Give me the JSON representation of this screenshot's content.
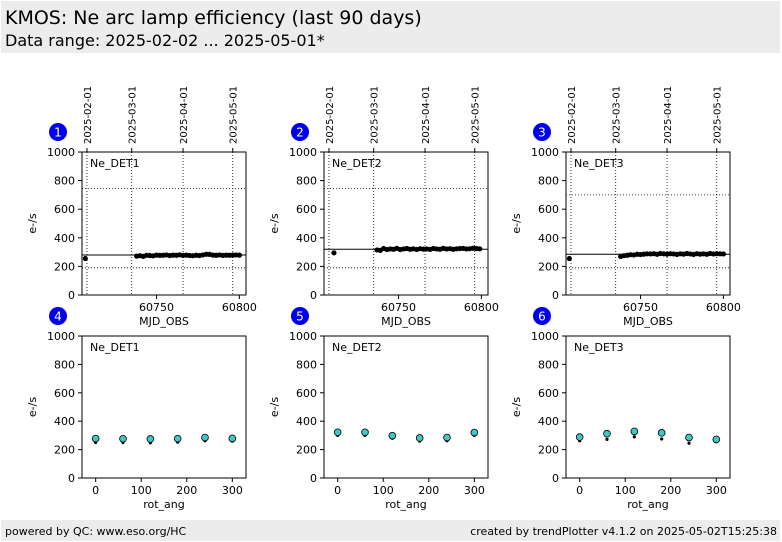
{
  "header": {
    "title": "KMOS: Ne arc lamp efficiency (last 90 days)",
    "subtitle": "Data range: 2025-02-02 ... 2025-05-01*"
  },
  "footer": {
    "left": "powered by QC: www.eso.org/HC",
    "right": "created by trendPlotter v4.1.2 on 2025-05-02T15:25:38"
  },
  "colors": {
    "badge": "#0000ee",
    "marker": "#000000",
    "outlier_fill": "#40c8c8"
  },
  "chart_data": [
    {
      "type": "scatter",
      "panel": "1",
      "label": "Ne_DET1",
      "xlabel": "MJD_OBS",
      "ylabel": "e-/s",
      "xlim": [
        60705,
        60804
      ],
      "ylim": [
        0,
        1000
      ],
      "yticks": [
        0,
        200,
        400,
        600,
        800,
        1000
      ],
      "xticks": [
        60750,
        60800
      ],
      "date_ticks": [
        {
          "mjd": 60708,
          "label": "2025-02-01"
        },
        {
          "mjd": 60735,
          "label": "2025-03-01"
        },
        {
          "mjd": 60766,
          "label": "2025-04-01"
        },
        {
          "mjd": 60796,
          "label": "2025-05-01"
        }
      ],
      "reference": 280,
      "limits": [
        190,
        745
      ],
      "grid": true,
      "x": [
        60707,
        60738,
        60740,
        60742,
        60744,
        60746,
        60748,
        60750,
        60752,
        60754,
        60756,
        60758,
        60760,
        60762,
        60764,
        60766,
        60768,
        60770,
        60772,
        60774,
        60776,
        60778,
        60780,
        60782,
        60784,
        60786,
        60788,
        60790,
        60792,
        60794,
        60796,
        60798,
        60800
      ],
      "y": [
        255,
        272,
        275,
        270,
        278,
        276,
        274,
        279,
        277,
        278,
        280,
        276,
        279,
        278,
        281,
        277,
        279,
        276,
        275,
        278,
        276,
        280,
        285,
        284,
        279,
        278,
        280,
        277,
        279,
        278,
        279,
        280,
        279
      ]
    },
    {
      "type": "scatter",
      "panel": "2",
      "label": "Ne_DET2",
      "xlabel": "MJD_OBS",
      "ylabel": "e-/s",
      "xlim": [
        60705,
        60804
      ],
      "ylim": [
        0,
        1000
      ],
      "yticks": [
        0,
        200,
        400,
        600,
        800,
        1000
      ],
      "xticks": [
        60750,
        60800
      ],
      "date_ticks": [
        {
          "mjd": 60708,
          "label": "2025-02-01"
        },
        {
          "mjd": 60735,
          "label": "2025-03-01"
        },
        {
          "mjd": 60766,
          "label": "2025-04-01"
        },
        {
          "mjd": 60796,
          "label": "2025-05-01"
        }
      ],
      "reference": 320,
      "limits": [
        190,
        745
      ],
      "grid": true,
      "x": [
        60711,
        60737,
        60739,
        60741,
        60743,
        60745,
        60747,
        60749,
        60751,
        60753,
        60755,
        60757,
        60759,
        60761,
        60763,
        60765,
        60767,
        60769,
        60771,
        60773,
        60775,
        60777,
        60779,
        60781,
        60783,
        60785,
        60787,
        60789,
        60791,
        60793,
        60795,
        60797,
        60799
      ],
      "y": [
        295,
        315,
        312,
        325,
        318,
        322,
        320,
        326,
        318,
        322,
        325,
        320,
        323,
        318,
        324,
        321,
        322,
        319,
        325,
        322,
        320,
        326,
        322,
        324,
        320,
        323,
        325,
        326,
        322,
        324,
        327,
        325,
        323
      ]
    },
    {
      "type": "scatter",
      "panel": "3",
      "label": "Ne_DET3",
      "xlabel": "MJD_OBS",
      "ylabel": "e-/s",
      "xlim": [
        60705,
        60804
      ],
      "ylim": [
        0,
        1000
      ],
      "yticks": [
        0,
        200,
        400,
        600,
        800,
        1000
      ],
      "xticks": [
        60750,
        60800
      ],
      "date_ticks": [
        {
          "mjd": 60708,
          "label": "2025-02-01"
        },
        {
          "mjd": 60735,
          "label": "2025-03-01"
        },
        {
          "mjd": 60766,
          "label": "2025-04-01"
        },
        {
          "mjd": 60796,
          "label": "2025-05-01"
        }
      ],
      "reference": 285,
      "limits": [
        190,
        700
      ],
      "grid": true,
      "x": [
        60707,
        60738,
        60740,
        60742,
        60744,
        60746,
        60748,
        60750,
        60752,
        60754,
        60756,
        60758,
        60760,
        60762,
        60764,
        60766,
        60768,
        60770,
        60772,
        60774,
        60776,
        60778,
        60780,
        60782,
        60784,
        60786,
        60788,
        60790,
        60792,
        60794,
        60796,
        60798,
        60800
      ],
      "y": [
        255,
        270,
        275,
        278,
        282,
        280,
        285,
        283,
        286,
        288,
        287,
        289,
        285,
        290,
        288,
        286,
        289,
        287,
        284,
        288,
        286,
        290,
        287,
        284,
        289,
        286,
        288,
        285,
        290,
        287,
        289,
        288,
        287
      ]
    },
    {
      "type": "scatter",
      "panel": "4",
      "label": "Ne_DET1",
      "xlabel": "rot_ang",
      "ylabel": "e-/s",
      "xlim": [
        -30,
        330
      ],
      "ylim": [
        0,
        1000
      ],
      "yticks": [
        0,
        200,
        400,
        600,
        800,
        1000
      ],
      "xticks": [
        0,
        100,
        200,
        300
      ],
      "grid": false,
      "x": [
        0,
        60,
        120,
        180,
        240,
        300
      ],
      "y": [
        278,
        276,
        275,
        277,
        285,
        279
      ],
      "x_min": [
        0,
        60,
        120,
        180,
        240,
        300
      ],
      "y_min": [
        250,
        250,
        248,
        253,
        262,
        260
      ]
    },
    {
      "type": "scatter",
      "panel": "5",
      "label": "Ne_DET2",
      "xlabel": "rot_ang",
      "ylabel": "e-/s",
      "xlim": [
        -30,
        330
      ],
      "ylim": [
        0,
        1000
      ],
      "yticks": [
        0,
        200,
        400,
        600,
        800,
        1000
      ],
      "xticks": [
        0,
        100,
        200,
        300
      ],
      "grid": false,
      "x": [
        0,
        60,
        120,
        180,
        240,
        300
      ],
      "y": [
        322,
        322,
        298,
        282,
        285,
        320
      ],
      "x_min": [
        0,
        60,
        120,
        180,
        240,
        300
      ],
      "y_min": [
        300,
        300,
        280,
        260,
        262,
        300
      ]
    },
    {
      "type": "scatter",
      "panel": "6",
      "label": "Ne_DET3",
      "xlabel": "rot_ang",
      "ylabel": "e-/s",
      "xlim": [
        -30,
        330
      ],
      "ylim": [
        0,
        1000
      ],
      "yticks": [
        0,
        200,
        400,
        600,
        800,
        1000
      ],
      "xticks": [
        0,
        100,
        200,
        300
      ],
      "grid": false,
      "x": [
        0,
        60,
        120,
        180,
        240,
        300
      ],
      "y": [
        288,
        312,
        328,
        318,
        285,
        272
      ],
      "x_min": [
        0,
        60,
        120,
        180,
        240,
        300
      ],
      "y_min": [
        262,
        272,
        290,
        275,
        245,
        255
      ]
    }
  ]
}
